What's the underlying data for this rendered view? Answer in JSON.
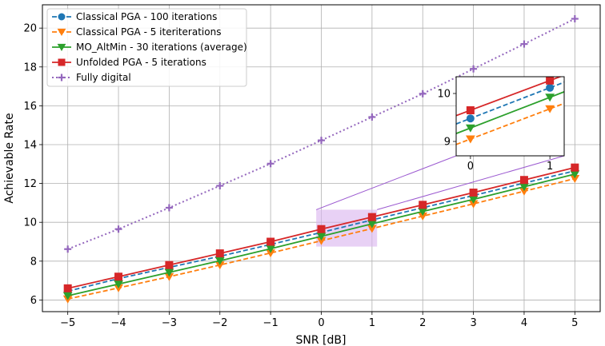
{
  "chart_data": {
    "type": "line",
    "title": "",
    "xlabel": "SNR [dB]",
    "ylabel": "Achievable Rate",
    "xlim": [
      -5.5,
      5.5
    ],
    "ylim": [
      5.4,
      21.2
    ],
    "grid": true,
    "legend_position": "top-left",
    "x": [
      -5,
      -4,
      -3,
      -2,
      -1,
      0,
      1,
      2,
      3,
      4,
      5
    ],
    "x_tick_labels": [
      "−5",
      "−4",
      "−3",
      "−2",
      "−1",
      "0",
      "1",
      "2",
      "3",
      "4",
      "5"
    ],
    "y_ticks": [
      6,
      8,
      10,
      12,
      14,
      16,
      18,
      20
    ],
    "y_tick_labels": [
      "6",
      "8",
      "10",
      "12",
      "14",
      "16",
      "18",
      "20"
    ],
    "series": [
      {
        "name": "Classical PGA - 100 iterations",
        "color": "#1f77b4",
        "linestyle": "dashed",
        "marker": "circle",
        "values": [
          6.45,
          7.1,
          7.68,
          8.25,
          8.86,
          9.48,
          10.12,
          10.75,
          11.38,
          12.02,
          12.65
        ]
      },
      {
        "name": "Classical PGA - 5 iteriterations",
        "color": "#ff7f0e",
        "linestyle": "dashed",
        "marker": "triangle-down",
        "values": [
          6.05,
          6.62,
          7.2,
          7.8,
          8.42,
          9.05,
          9.68,
          10.32,
          10.95,
          11.6,
          12.25
        ]
      },
      {
        "name": "MO_AltMin - 30 iterations (average)",
        "color": "#2ca02c",
        "linestyle": "solid",
        "marker": "triangle-down",
        "values": [
          6.22,
          6.82,
          7.42,
          8.02,
          8.64,
          9.28,
          9.92,
          10.56,
          11.18,
          11.83,
          12.48
        ]
      },
      {
        "name": "Unfolded PGA - 5 iterations",
        "color": "#d62728",
        "linestyle": "solid",
        "marker": "square",
        "values": [
          6.6,
          7.2,
          7.8,
          8.4,
          9.0,
          9.65,
          10.27,
          10.9,
          11.53,
          12.18,
          12.82
        ]
      },
      {
        "name": "Fully digital",
        "color": "#9467bd",
        "linestyle": "dotted",
        "marker": "plus",
        "values": [
          8.62,
          9.65,
          10.75,
          11.88,
          13.02,
          14.22,
          15.42,
          16.62,
          17.9,
          19.18,
          20.48
        ]
      }
    ],
    "inset": {
      "xlim": [
        -0.18,
        1.18
      ],
      "ylim": [
        8.7,
        10.35
      ],
      "x_ticks": [
        0,
        1
      ],
      "x_tick_labels": [
        "0",
        "1"
      ],
      "y_ticks": [
        9,
        10
      ],
      "y_tick_labels": [
        "9",
        "10"
      ],
      "highlight_region_x": [
        -0.1,
        1.1
      ],
      "highlight_region_y": [
        8.75,
        10.65
      ]
    }
  }
}
